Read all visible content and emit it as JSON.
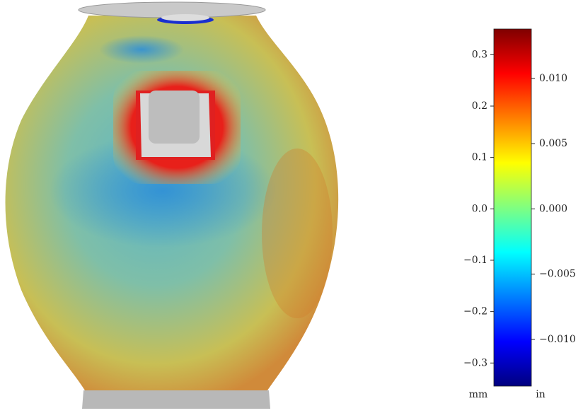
{
  "chart_data": {
    "type": "colorbar",
    "colormap": "jet",
    "ylabel": "mm",
    "y2label": "in",
    "ylim": [
      -0.345,
      0.35
    ],
    "yticks": [
      {
        "value": 0.3,
        "label": "0.3"
      },
      {
        "value": 0.2,
        "label": "0.2"
      },
      {
        "value": 0.1,
        "label": "0.1"
      },
      {
        "value": 0,
        "label": "0.0"
      },
      {
        "value": -0.1,
        "label": "−0.1"
      },
      {
        "value": -0.2,
        "label": "−0.2"
      },
      {
        "value": -0.3,
        "label": "−0.3"
      }
    ],
    "y2lim": [
      -0.01358,
      0.01378
    ],
    "y2ticks": [
      {
        "value": 0.01,
        "label": "0.010"
      },
      {
        "value": 0.005,
        "label": "0.005"
      },
      {
        "value": 0,
        "label": "0.000"
      },
      {
        "value": -0.005,
        "label": "−0.005"
      },
      {
        "value": -0.01,
        "label": "−0.010"
      }
    ]
  }
}
